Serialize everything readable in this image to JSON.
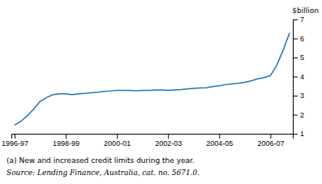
{
  "chart_data": {
    "type": "line",
    "categories": [
      "1996-97",
      null,
      null,
      null,
      null,
      null,
      null,
      null,
      "1998-99",
      null,
      null,
      null,
      null,
      null,
      null,
      null,
      "2000-01",
      null,
      null,
      null,
      null,
      null,
      null,
      null,
      "2002-03",
      null,
      null,
      null,
      null,
      null,
      null,
      null,
      "2004-05",
      null,
      null,
      null,
      null,
      null,
      null,
      null,
      "2006-07",
      null,
      null,
      null
    ],
    "values": [
      1.45,
      1.65,
      1.95,
      2.3,
      2.7,
      2.9,
      3.05,
      3.1,
      3.1,
      3.05,
      3.1,
      3.12,
      3.15,
      3.18,
      3.22,
      3.25,
      3.28,
      3.28,
      3.28,
      3.26,
      3.28,
      3.28,
      3.3,
      3.3,
      3.28,
      3.3,
      3.32,
      3.35,
      3.38,
      3.4,
      3.42,
      3.48,
      3.52,
      3.58,
      3.62,
      3.65,
      3.7,
      3.78,
      3.88,
      3.95,
      4.05,
      4.6,
      5.4,
      6.3
    ],
    "y_label": "$billion",
    "ylim": [
      1,
      7
    ],
    "yticks": [
      1,
      2,
      3,
      4,
      5,
      6,
      7
    ],
    "grid": false,
    "annotations": [
      "(a) New and increased credit limits during the year.",
      "Source: Lending Finance, Australia, cat. no. 5671.0."
    ]
  }
}
